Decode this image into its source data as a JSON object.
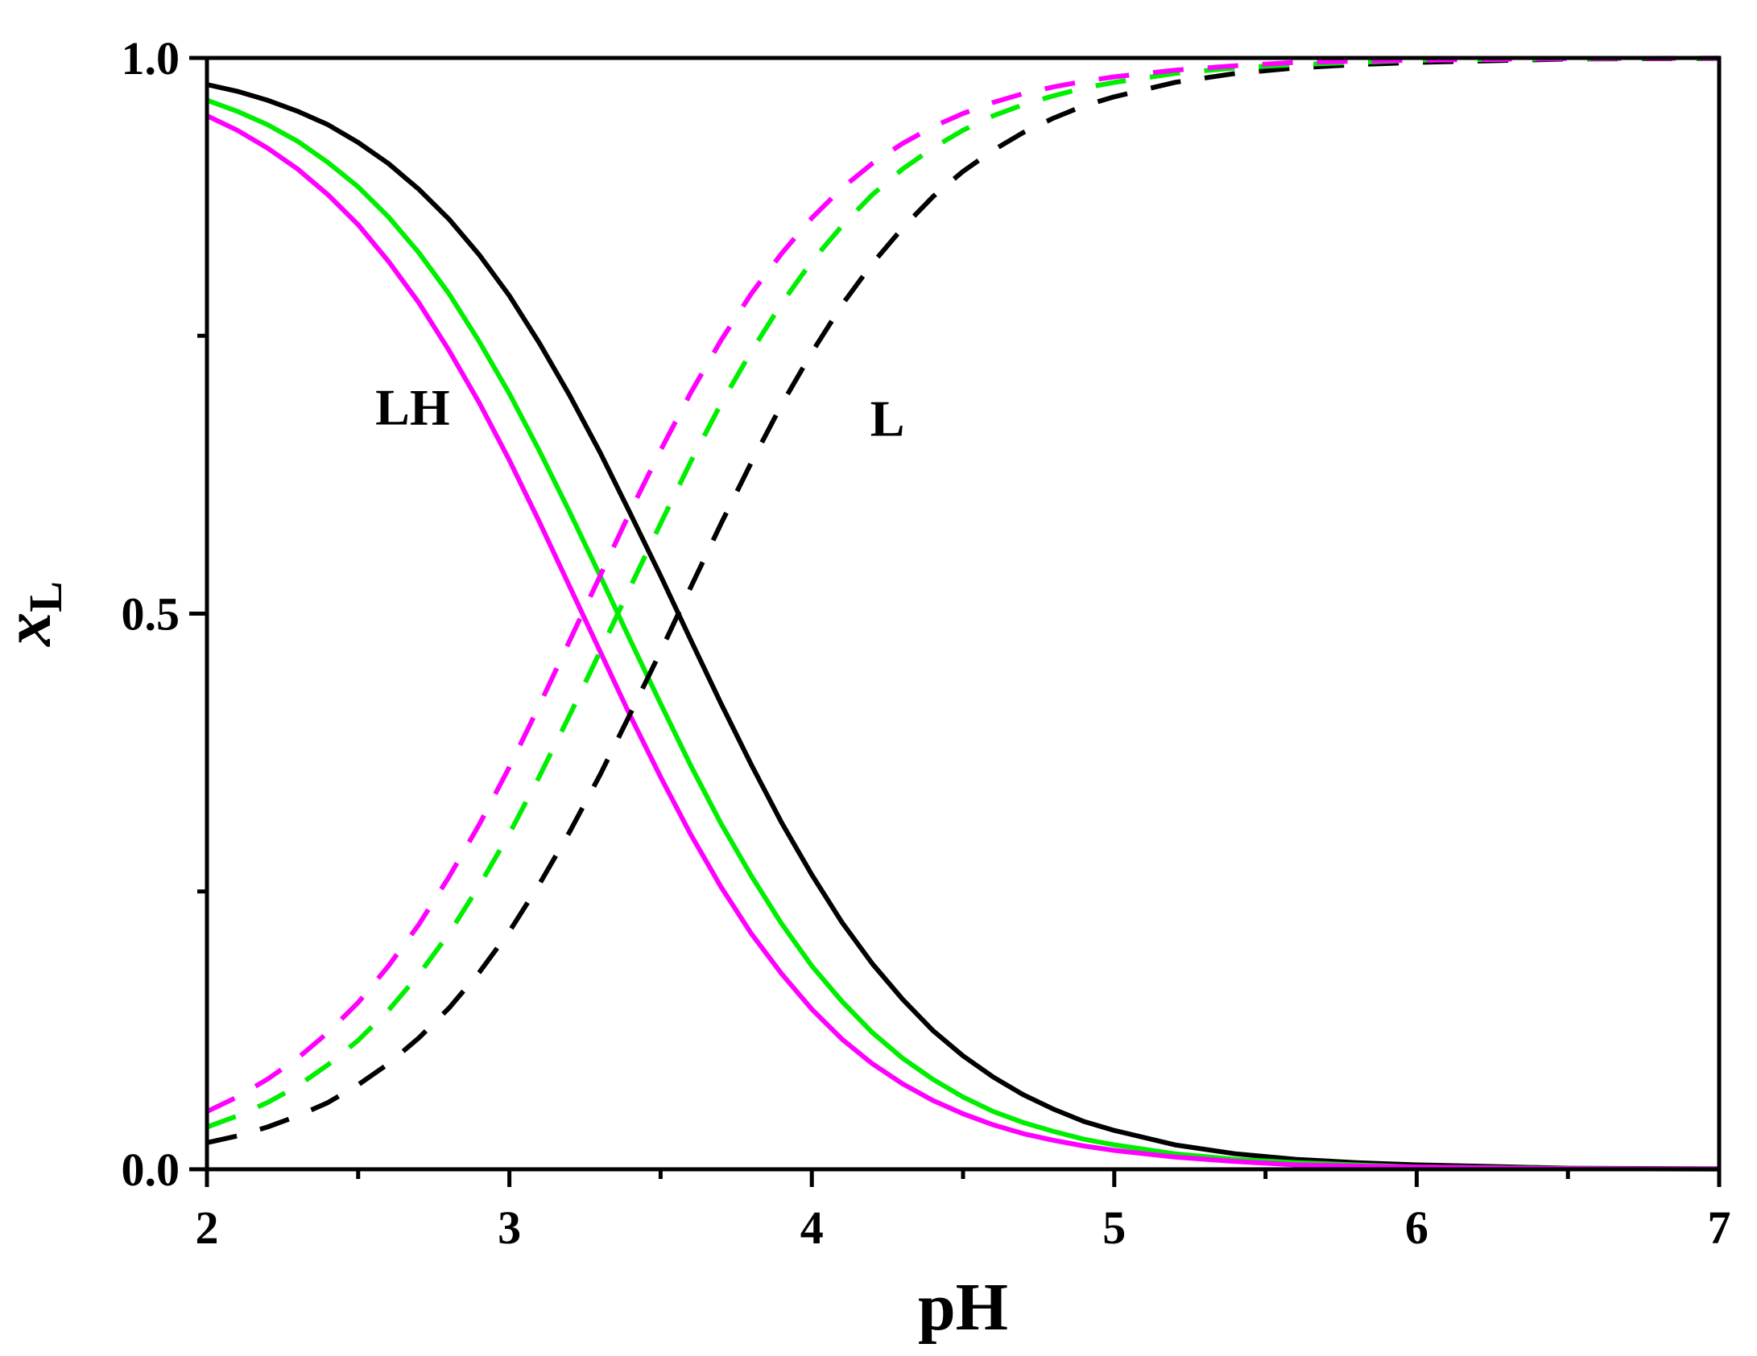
{
  "chart_data": {
    "type": "line",
    "title": "",
    "xlabel": "pH",
    "ylabel": {
      "main": "x",
      "sub": "L"
    },
    "xlim": [
      2,
      7
    ],
    "ylim": [
      0,
      1
    ],
    "x_ticks": [
      2,
      3,
      4,
      5,
      6,
      7
    ],
    "x_tick_labels": [
      "2",
      "3",
      "4",
      "5",
      "6",
      "7"
    ],
    "y_ticks": [
      0,
      0.5,
      1
    ],
    "y_tick_labels": [
      "0.0",
      "0.5",
      "1.0"
    ],
    "grid": false,
    "legend": "none",
    "annotations": [
      {
        "text": "LH",
        "x": 2.68,
        "y": 0.67
      },
      {
        "text": "L",
        "x": 4.25,
        "y": 0.66
      }
    ],
    "x": [
      2.0,
      2.1,
      2.2,
      2.3,
      2.4,
      2.5,
      2.6,
      2.7,
      2.8,
      2.9,
      3.0,
      3.1,
      3.2,
      3.3,
      3.4,
      3.5,
      3.6,
      3.7,
      3.8,
      3.9,
      4.0,
      4.1,
      4.2,
      4.3,
      4.4,
      4.5,
      4.6,
      4.7,
      4.8,
      4.9,
      5.0,
      5.2,
      5.4,
      5.6,
      5.8,
      6.0,
      6.5,
      7.0
    ],
    "series": [
      {
        "group": "LH",
        "color": "#000000",
        "dash": "solid",
        "values": [
          0.976,
          0.97,
          0.962,
          0.952,
          0.94,
          0.924,
          0.905,
          0.882,
          0.855,
          0.823,
          0.786,
          0.743,
          0.696,
          0.645,
          0.59,
          0.534,
          0.476,
          0.419,
          0.364,
          0.312,
          0.265,
          0.222,
          0.185,
          0.153,
          0.125,
          0.102,
          0.083,
          0.067,
          0.054,
          0.043,
          0.035,
          0.022,
          0.014,
          0.009,
          0.006,
          0.004,
          0.001,
          0.0004
        ]
      },
      {
        "group": "LH",
        "color": "#00ee00",
        "dash": "solid",
        "values": [
          0.962,
          0.952,
          0.94,
          0.925,
          0.906,
          0.884,
          0.857,
          0.825,
          0.788,
          0.745,
          0.698,
          0.646,
          0.591,
          0.534,
          0.476,
          0.419,
          0.363,
          0.311,
          0.264,
          0.221,
          0.183,
          0.151,
          0.123,
          0.1,
          0.081,
          0.065,
          0.052,
          0.042,
          0.034,
          0.027,
          0.022,
          0.014,
          0.009,
          0.006,
          0.004,
          0.002,
          0.0007,
          0.0002
        ]
      },
      {
        "group": "LH",
        "color": "#ff00ff",
        "dash": "solid",
        "values": [
          0.948,
          0.935,
          0.919,
          0.9,
          0.877,
          0.85,
          0.817,
          0.78,
          0.737,
          0.69,
          0.638,
          0.582,
          0.524,
          0.466,
          0.408,
          0.353,
          0.301,
          0.254,
          0.212,
          0.176,
          0.144,
          0.117,
          0.095,
          0.077,
          0.062,
          0.05,
          0.04,
          0.032,
          0.026,
          0.021,
          0.017,
          0.011,
          0.007,
          0.004,
          0.003,
          0.002,
          0.0005,
          0.0002
        ]
      },
      {
        "group": "L",
        "color": "#000000",
        "dash": "dashed",
        "values": [
          0.024,
          0.03,
          0.038,
          0.048,
          0.06,
          0.076,
          0.095,
          0.118,
          0.145,
          0.177,
          0.214,
          0.257,
          0.304,
          0.355,
          0.41,
          0.466,
          0.524,
          0.581,
          0.636,
          0.688,
          0.735,
          0.778,
          0.815,
          0.847,
          0.875,
          0.898,
          0.917,
          0.933,
          0.946,
          0.957,
          0.965,
          0.978,
          0.986,
          0.991,
          0.994,
          0.996,
          0.999,
          0.9996
        ]
      },
      {
        "group": "L",
        "color": "#00ee00",
        "dash": "dashed",
        "values": [
          0.038,
          0.048,
          0.06,
          0.075,
          0.094,
          0.116,
          0.143,
          0.175,
          0.212,
          0.255,
          0.302,
          0.354,
          0.409,
          0.466,
          0.524,
          0.581,
          0.637,
          0.689,
          0.736,
          0.779,
          0.817,
          0.849,
          0.877,
          0.9,
          0.919,
          0.935,
          0.948,
          0.958,
          0.966,
          0.973,
          0.978,
          0.986,
          0.991,
          0.994,
          0.996,
          0.998,
          0.9993,
          0.9998
        ]
      },
      {
        "group": "L",
        "color": "#ff00ff",
        "dash": "dashed",
        "values": [
          0.052,
          0.065,
          0.081,
          0.1,
          0.123,
          0.15,
          0.183,
          0.22,
          0.263,
          0.31,
          0.362,
          0.418,
          0.476,
          0.534,
          0.592,
          0.647,
          0.699,
          0.746,
          0.788,
          0.824,
          0.856,
          0.883,
          0.905,
          0.923,
          0.938,
          0.95,
          0.96,
          0.968,
          0.974,
          0.979,
          0.983,
          0.989,
          0.993,
          0.996,
          0.997,
          0.998,
          0.9995,
          0.9998
        ]
      }
    ]
  }
}
